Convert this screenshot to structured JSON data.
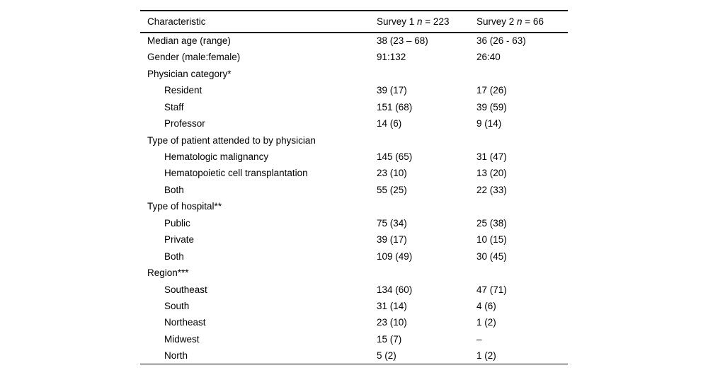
{
  "table": {
    "header": {
      "characteristic": "Characteristic",
      "survey1_prefix": "Survey 1 ",
      "survey1_n": "n",
      "survey1_suffix": " = 223",
      "survey2_prefix": "Survey 2 ",
      "survey2_n": "n",
      "survey2_suffix": " = 66"
    },
    "rows": [
      {
        "label": "Median age (range)",
        "indent": 0,
        "survey1": "38 (23 – 68)",
        "survey2": "36 (26 - 63)"
      },
      {
        "label": "Gender (male:female)",
        "indent": 0,
        "survey1": "91:132",
        "survey2": "26:40"
      },
      {
        "label": "Physician category*",
        "indent": 0,
        "survey1": "",
        "survey2": ""
      },
      {
        "label": "Resident",
        "indent": 1,
        "survey1": "39 (17)",
        "survey2": "17 (26)"
      },
      {
        "label": "Staff",
        "indent": 1,
        "survey1": "151 (68)",
        "survey2": "39 (59)"
      },
      {
        "label": "Professor",
        "indent": 1,
        "survey1": "14 (6)",
        "survey2": "9 (14)"
      },
      {
        "label": "Type of patient attended to by physician",
        "indent": 0,
        "survey1": "",
        "survey2": ""
      },
      {
        "label": "Hematologic malignancy",
        "indent": 1,
        "survey1": "145 (65)",
        "survey2": "31 (47)"
      },
      {
        "label": "Hematopoietic cell transplantation",
        "indent": 1,
        "survey1": "23 (10)",
        "survey2": "13 (20)"
      },
      {
        "label": "Both",
        "indent": 1,
        "survey1": "55 (25)",
        "survey2": "22 (33)"
      },
      {
        "label": "Type of hospital**",
        "indent": 0,
        "survey1": "",
        "survey2": ""
      },
      {
        "label": "Public",
        "indent": 1,
        "survey1": "75 (34)",
        "survey2": "25 (38)"
      },
      {
        "label": "Private",
        "indent": 1,
        "survey1": "39 (17)",
        "survey2": "10 (15)"
      },
      {
        "label": "Both",
        "indent": 1,
        "survey1": "109 (49)",
        "survey2": "30 (45)"
      },
      {
        "label": "Region***",
        "indent": 0,
        "survey1": "",
        "survey2": ""
      },
      {
        "label": "Southeast",
        "indent": 1,
        "survey1": "134 (60)",
        "survey2": "47 (71)"
      },
      {
        "label": "South",
        "indent": 1,
        "survey1": "31 (14)",
        "survey2": "4 (6)"
      },
      {
        "label": "Northeast",
        "indent": 1,
        "survey1": "23 (10)",
        "survey2": "1 (2)"
      },
      {
        "label": "Midwest",
        "indent": 1,
        "survey1": "15 (7)",
        "survey2": "–"
      },
      {
        "label": "North",
        "indent": 1,
        "survey1": "5 (2)",
        "survey2": "1 (2)"
      }
    ],
    "colors": {
      "text": "#000000",
      "background": "#ffffff",
      "rule": "#000000"
    }
  }
}
